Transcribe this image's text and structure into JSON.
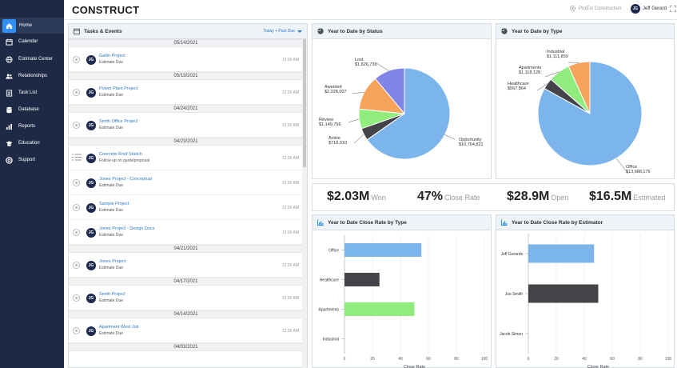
{
  "app": {
    "logo": "CONSTRUCT",
    "company": "ProEst Construction",
    "user_initials": "JG",
    "user_name": "Jeff Gerard"
  },
  "sidebar": {
    "items": [
      {
        "label": "Home",
        "icon": "home-icon",
        "active": true
      },
      {
        "label": "Calendar",
        "icon": "calendar-icon"
      },
      {
        "label": "Estimate Center",
        "icon": "globe-icon"
      },
      {
        "label": "Relationships",
        "icon": "users-icon"
      },
      {
        "label": "Task List",
        "icon": "task-list-icon"
      },
      {
        "label": "Database",
        "icon": "database-icon"
      },
      {
        "label": "Reports",
        "icon": "reports-icon"
      },
      {
        "label": "Education",
        "icon": "education-icon"
      },
      {
        "label": "Support",
        "icon": "support-icon"
      }
    ]
  },
  "tasks": {
    "title": "Tasks & Events",
    "filter": "Today + Past Due",
    "groups": [
      {
        "date": "05/14/2021",
        "items": [
          {
            "name": "Gallin Project",
            "sub": "Estimate Due",
            "time": "12:00 AM",
            "initials": "JG"
          }
        ]
      },
      {
        "date": "05/13/2021",
        "items": [
          {
            "name": "Power Plant Project",
            "sub": "Estimate Due",
            "time": "12:00 AM",
            "initials": "JG"
          }
        ]
      },
      {
        "date": "04/24/2021",
        "items": [
          {
            "name": "Smith Office Project",
            "sub": "Estimate Due",
            "time": "12:00 AM",
            "initials": "JG"
          }
        ]
      },
      {
        "date": "04/23/2021",
        "items": [
          {
            "name": "Concrete Roof Sketch",
            "sub": "Follow-up on quote/proposal",
            "time": "12:00 AM",
            "initials": "JG",
            "type": "list"
          },
          {
            "name": "Jones Project - Conceptual",
            "sub": "Estimate Due",
            "time": "12:00 AM",
            "initials": "JG"
          },
          {
            "name": "Sample Project",
            "sub": "Estimate Due",
            "time": "12:00 AM",
            "initials": "JG"
          },
          {
            "name": "Jones Project - Design Docs",
            "sub": "Estimate Due",
            "time": "12:00 AM",
            "initials": "JG"
          }
        ]
      },
      {
        "date": "04/21/2021",
        "items": [
          {
            "name": "Jones Project",
            "sub": "Estimate Due",
            "time": "12:00 AM",
            "initials": "JG"
          }
        ]
      },
      {
        "date": "04/17/2021",
        "items": [
          {
            "name": "Smith Project",
            "sub": "Estimate Due",
            "time": "12:00 AM",
            "initials": "JG"
          }
        ]
      },
      {
        "date": "04/14/2021",
        "items": [
          {
            "name": "Apartment West Job",
            "sub": "Estimate Due",
            "time": "12:00 AM",
            "initials": "JG"
          }
        ]
      },
      {
        "date": "04/03/2021",
        "items": []
      }
    ]
  },
  "pie_status": {
    "title": "Year to Date by Status"
  },
  "pie_type": {
    "title": "Year to Date by Type"
  },
  "stats": [
    {
      "value": "$2.03M",
      "label": "Won"
    },
    {
      "value": "47%",
      "label": "Close Rate"
    },
    {
      "value": "$28.9M",
      "label": "Open"
    },
    {
      "value": "$16.5M",
      "label": "Estimated"
    }
  ],
  "bar_type": {
    "title": "Year to Date Close Rate by Type"
  },
  "bar_estimator": {
    "title": "Year to Date Close Rate by Estimator"
  },
  "chart_data": [
    {
      "type": "pie",
      "title": "Year to Date by Status",
      "labels": [
        "Opportunity",
        "Active",
        "Review",
        "Awarded",
        "Lost"
      ],
      "value_labels": [
        "$10,764,821",
        "$718,910",
        "$1,149,756",
        "$2,028,007",
        "$1,826,736"
      ],
      "values": [
        10764821,
        718910,
        1149756,
        2028007,
        1826736
      ],
      "colors": [
        "#7cb5ec",
        "#434348",
        "#90ed7d",
        "#f7a35c",
        "#8085e9"
      ]
    },
    {
      "type": "pie",
      "title": "Year to Date by Type",
      "labels": [
        "Office",
        "Healthcare",
        "Apartments",
        "Industrial"
      ],
      "value_labels": [
        "$13,688,176",
        "$567,864",
        "$1,118,128",
        "$1,111,859"
      ],
      "values": [
        13688176,
        567864,
        1118128,
        1111859
      ],
      "colors": [
        "#7cb5ec",
        "#434348",
        "#90ed7d",
        "#f7a35c"
      ]
    },
    {
      "type": "bar",
      "orientation": "horizontal",
      "title": "Year to Date Close Rate by Type",
      "categories": [
        "Office",
        "Healthcare",
        "Apartments",
        "Industrial"
      ],
      "values": [
        55,
        25,
        50,
        0
      ],
      "colors": [
        "#7cb5ec",
        "#434348",
        "#90ed7d",
        "#f7a35c"
      ],
      "xlabel": "Close Rate",
      "xlim": [
        0,
        100
      ],
      "xticks": [
        0,
        20,
        40,
        60,
        80,
        100
      ]
    },
    {
      "type": "bar",
      "orientation": "horizontal",
      "title": "Year to Date Close Rate by Estimator",
      "categories": [
        "Jeff Gerards",
        "Joe Smith",
        "Jacob Simon"
      ],
      "values": [
        47,
        50,
        0
      ],
      "colors": [
        "#7cb5ec",
        "#434348",
        "#90ed7d"
      ],
      "xlabel": "Close Rate",
      "xlim": [
        0,
        100
      ],
      "xticks": [
        0,
        20,
        40,
        60,
        80,
        100
      ]
    }
  ]
}
